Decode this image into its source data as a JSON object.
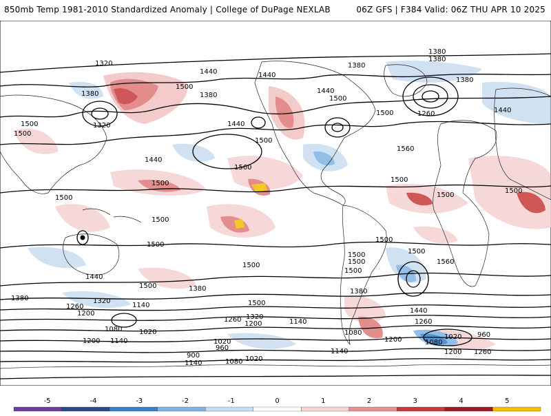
{
  "header": {
    "left_title": "850mb Temp 1981-2010 Standardized Anomaly | College of DuPage NEXLAB",
    "right_title": "06Z GFS | F384 Valid: 06Z THU APR 10 2025"
  },
  "contour_labels": [
    "1320",
    "1440",
    "1380",
    "1440",
    "1380",
    "1320",
    "1380",
    "1500",
    "1380",
    "1440",
    "1500",
    "1380",
    "1380",
    "1260",
    "1440",
    "1500",
    "1440",
    "1500",
    "1500",
    "1500",
    "1500",
    "1560",
    "1500",
    "1440",
    "1560",
    "1500",
    "1500",
    "1500",
    "1500",
    "1500",
    "1500",
    "1560",
    "1500",
    "1500",
    "1500",
    "1500",
    "1500",
    "1500",
    "1380",
    "1380",
    "1500",
    "1440",
    "1440",
    "1380",
    "1320",
    "1260",
    "1200",
    "1140",
    "1080",
    "1020",
    "1320",
    "1260",
    "1200",
    "1140",
    "1080",
    "1140",
    "1200",
    "1140",
    "1020",
    "960",
    "1020",
    "1260",
    "1200",
    "900",
    "960",
    "1080",
    "1020",
    "1140",
    "1080",
    "1200",
    "1260"
  ],
  "colorbar": {
    "ticks": [
      "-5",
      "-4",
      "-3",
      "-2",
      "-1",
      "0",
      "1",
      "2",
      "3",
      "4",
      "5"
    ],
    "colors": [
      "#6a3d9a",
      "#2c4a8a",
      "#3a7fc8",
      "#7fb3e3",
      "#c8ddf0",
      "#ffffff",
      "#f6d2d2",
      "#e68f8f",
      "#c83a3a",
      "#9c1d26",
      "#f0c000"
    ]
  }
}
